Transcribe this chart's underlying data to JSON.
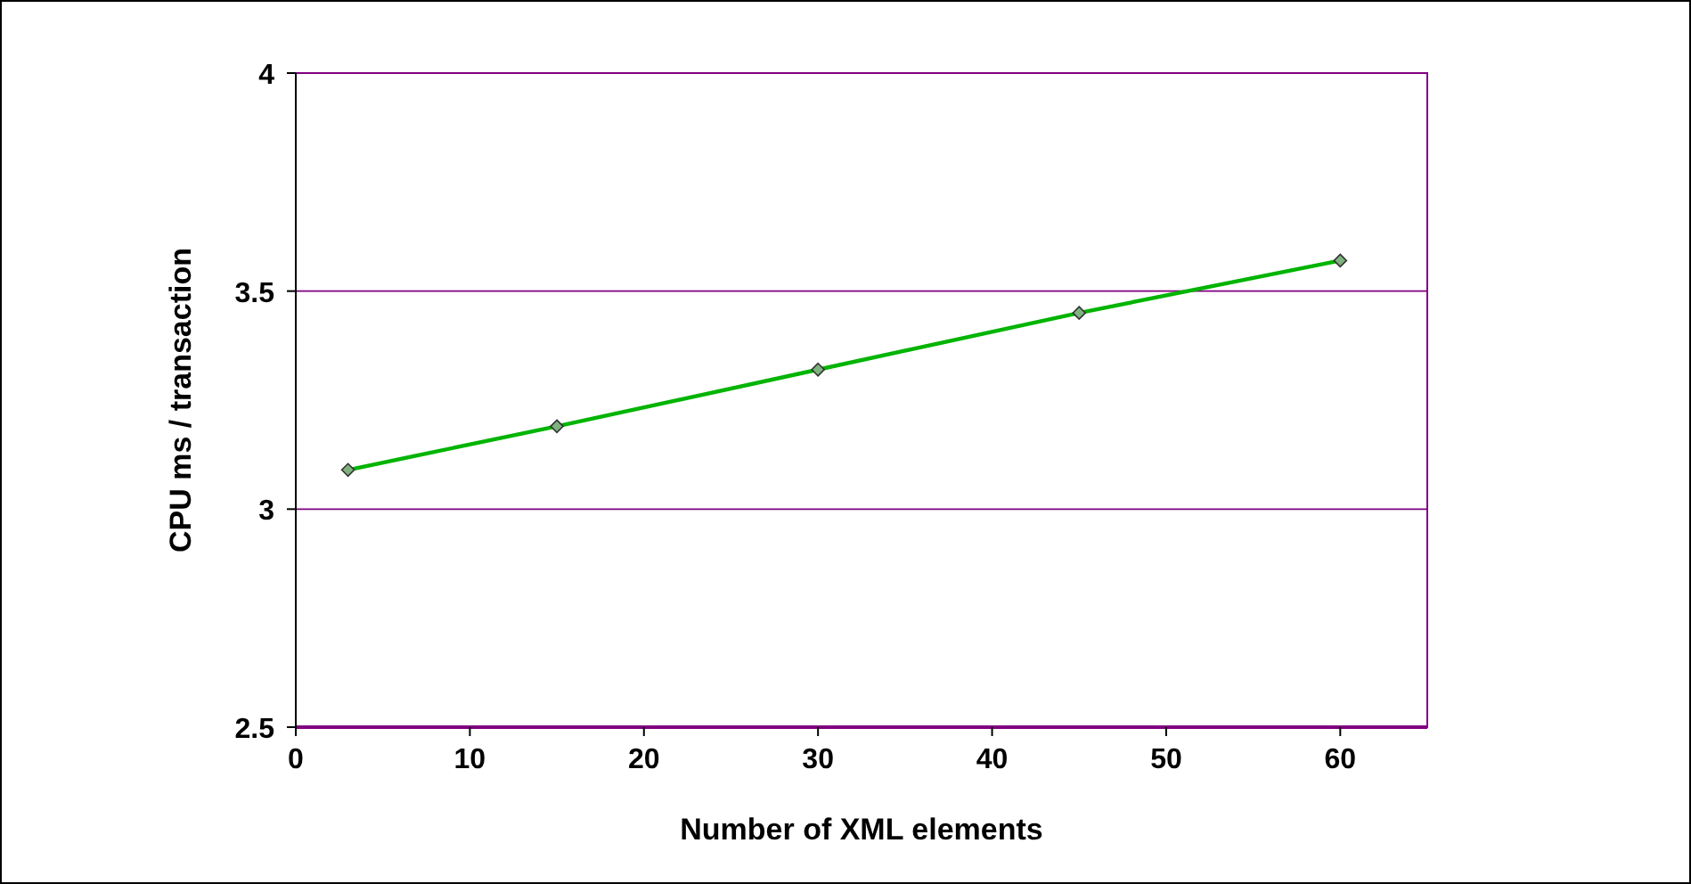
{
  "chart_data": {
    "type": "line",
    "xlabel": "Number of XML elements",
    "ylabel": "CPU ms / transaction",
    "x": [
      3,
      15,
      30,
      45,
      60
    ],
    "series": [
      {
        "color": "#00b400",
        "values": [
          3.09,
          3.19,
          3.32,
          3.45,
          3.57
        ]
      }
    ],
    "xlim": [
      0,
      65
    ],
    "xticks": [
      0,
      10,
      20,
      30,
      40,
      50,
      60
    ],
    "ylim": [
      2.5,
      4
    ],
    "yticks": [
      2.5,
      3,
      3.5,
      4
    ],
    "grid": "y",
    "marker": "diamond",
    "line_style": "solid"
  }
}
